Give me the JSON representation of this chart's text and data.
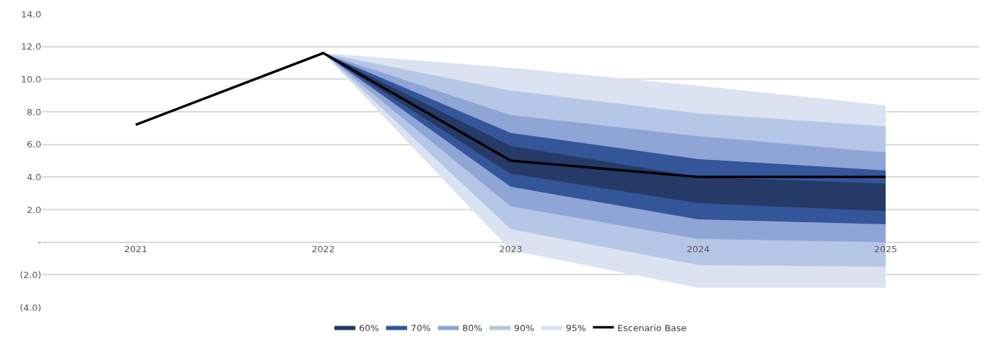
{
  "chart_data": {
    "type": "line",
    "categories": [
      "2021",
      "2022",
      "2023",
      "2024",
      "2025"
    ],
    "series": [
      {
        "name": "60%",
        "color": "#253a66",
        "values": [
          null,
          null,
          null,
          null,
          null
        ],
        "lower": [
          null,
          11.6,
          4.2,
          2.4,
          1.9
        ],
        "upper": [
          null,
          11.6,
          5.9,
          4.0,
          3.6
        ]
      },
      {
        "name": "70%",
        "color": "#34559a",
        "values": [
          null,
          null,
          null,
          null,
          null
        ],
        "lower": [
          null,
          11.6,
          3.4,
          1.4,
          1.1
        ],
        "upper": [
          null,
          11.6,
          6.7,
          5.1,
          4.4
        ]
      },
      {
        "name": "80%",
        "color": "#8fa5d6",
        "values": [
          null,
          null,
          null,
          null,
          null
        ],
        "lower": [
          null,
          11.6,
          2.2,
          0.2,
          0.0
        ],
        "upper": [
          null,
          11.6,
          7.8,
          6.5,
          5.5
        ]
      },
      {
        "name": "90%",
        "color": "#b6c6e6",
        "values": [
          null,
          null,
          null,
          null,
          null
        ],
        "lower": [
          null,
          11.6,
          0.8,
          -1.4,
          -1.5
        ],
        "upper": [
          null,
          11.6,
          9.3,
          7.9,
          7.1
        ]
      },
      {
        "name": "95%",
        "color": "#dbe2f2",
        "values": [
          null,
          null,
          null,
          null,
          null
        ],
        "lower": [
          null,
          11.6,
          -0.5,
          -2.8,
          -2.8
        ],
        "upper": [
          null,
          11.6,
          10.7,
          9.6,
          8.4
        ]
      },
      {
        "name": "Escenario Base",
        "color": "#000000",
        "values": [
          7.2,
          11.6,
          5.0,
          4.0,
          4.0
        ]
      }
    ],
    "ylim": [
      -4,
      14
    ],
    "yticks": [
      {
        "value": -4,
        "label": "(4.0)"
      },
      {
        "value": -2,
        "label": "(2.0)"
      },
      {
        "value": 0,
        "label": "-"
      },
      {
        "value": 2,
        "label": "2.0"
      },
      {
        "value": 4,
        "label": "4.0"
      },
      {
        "value": 6,
        "label": "6.0"
      },
      {
        "value": 8,
        "label": "8.0"
      },
      {
        "value": 10,
        "label": "10.0"
      },
      {
        "value": 12,
        "label": "12.0"
      },
      {
        "value": 14,
        "label": "14.0"
      }
    ],
    "grid": "y",
    "legend": "bottom",
    "marker": "none",
    "line_style": "solid"
  }
}
